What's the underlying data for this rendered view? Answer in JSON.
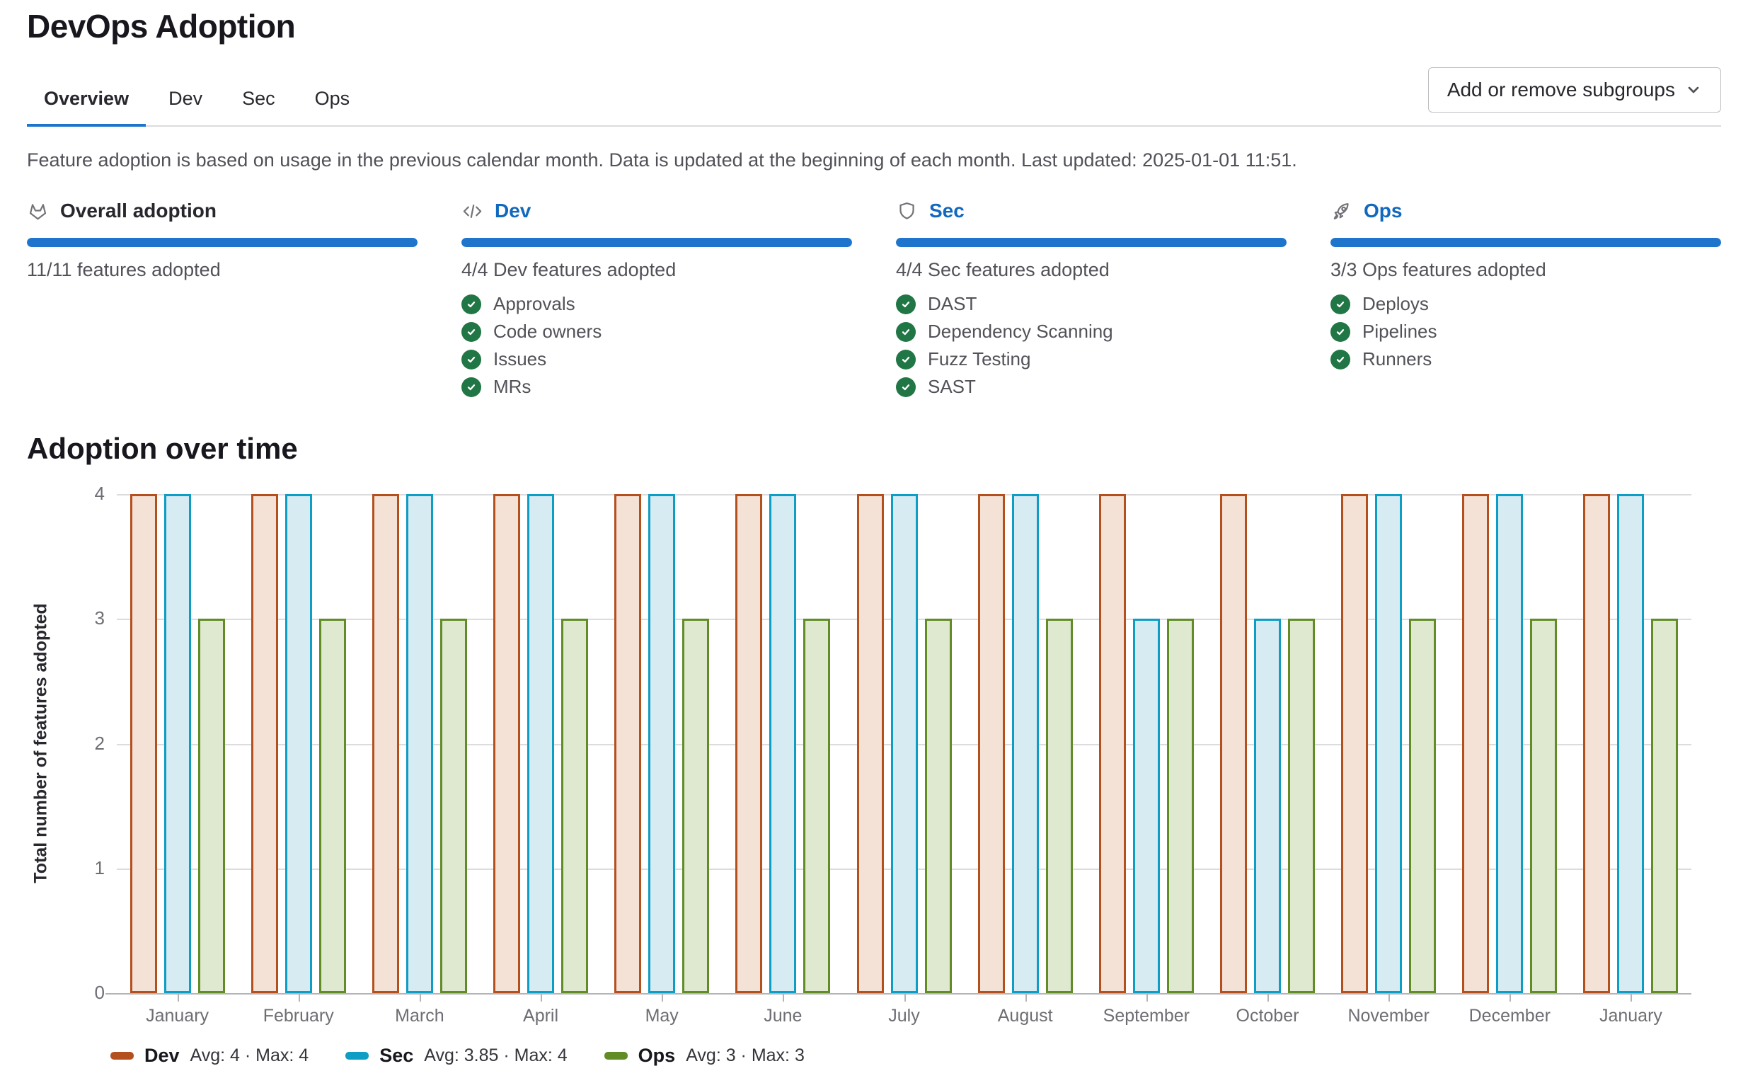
{
  "page": {
    "title": "DevOps Adoption"
  },
  "toolbar": {
    "add_remove_subgroups_label": "Add or remove subgroups"
  },
  "tabs": {
    "items": [
      {
        "label": "Overview",
        "active": true
      },
      {
        "label": "Dev",
        "active": false
      },
      {
        "label": "Sec",
        "active": false
      },
      {
        "label": "Ops",
        "active": false
      }
    ]
  },
  "description": "Feature adoption is based on usage in the previous calendar month. Data is updated at the beginning of each month. Last updated: 2025-01-01 11:51.",
  "cards": [
    {
      "id": "overall",
      "icon": "tanuki-icon",
      "title": "Overall adoption",
      "title_is_link": false,
      "progress_percent": 100,
      "summary": "11/11 features adopted",
      "features": []
    },
    {
      "id": "dev",
      "icon": "code-icon",
      "title": "Dev",
      "title_is_link": true,
      "progress_percent": 100,
      "summary": "4/4 Dev features adopted",
      "features": [
        "Approvals",
        "Code owners",
        "Issues",
        "MRs"
      ]
    },
    {
      "id": "sec",
      "icon": "shield-icon",
      "title": "Sec",
      "title_is_link": true,
      "progress_percent": 100,
      "summary": "4/4 Sec features adopted",
      "features": [
        "DAST",
        "Dependency Scanning",
        "Fuzz Testing",
        "SAST"
      ]
    },
    {
      "id": "ops",
      "icon": "rocket-icon",
      "title": "Ops",
      "title_is_link": true,
      "progress_percent": 100,
      "summary": "3/3 Ops features adopted",
      "features": [
        "Deploys",
        "Pipelines",
        "Runners"
      ]
    }
  ],
  "chart_data": {
    "type": "bar",
    "title": "Adoption over time",
    "ylabel": "Total number of features adopted",
    "xlabel": "",
    "ylim": [
      0,
      4
    ],
    "yticks": [
      0,
      1,
      2,
      3,
      4
    ],
    "grid": true,
    "legend_position": "bottom-left",
    "categories": [
      "January",
      "February",
      "March",
      "April",
      "May",
      "June",
      "July",
      "August",
      "September",
      "October",
      "November",
      "December",
      "January"
    ],
    "series": [
      {
        "name": "Dev",
        "color": "#b4501e",
        "fill": "#f4e2d7",
        "values": [
          4,
          4,
          4,
          4,
          4,
          4,
          4,
          4,
          4,
          4,
          4,
          4,
          4
        ],
        "legend_stats": "Avg: 4 · Max: 4"
      },
      {
        "name": "Sec",
        "color": "#0e9dc4",
        "fill": "#d7ebf2",
        "values": [
          4,
          4,
          4,
          4,
          4,
          4,
          4,
          4,
          3,
          3,
          4,
          4,
          4
        ],
        "legend_stats": "Avg: 3.85 · Max: 4"
      },
      {
        "name": "Ops",
        "color": "#618c26",
        "fill": "#dee9d0",
        "values": [
          3,
          3,
          3,
          3,
          3,
          3,
          3,
          3,
          3,
          3,
          3,
          3,
          3
        ],
        "legend_stats": "Avg: 3 · Max: 3"
      }
    ]
  },
  "colors": {
    "accent_blue": "#1f75cb",
    "link_blue": "#1068bf",
    "check_green": "#217645"
  }
}
